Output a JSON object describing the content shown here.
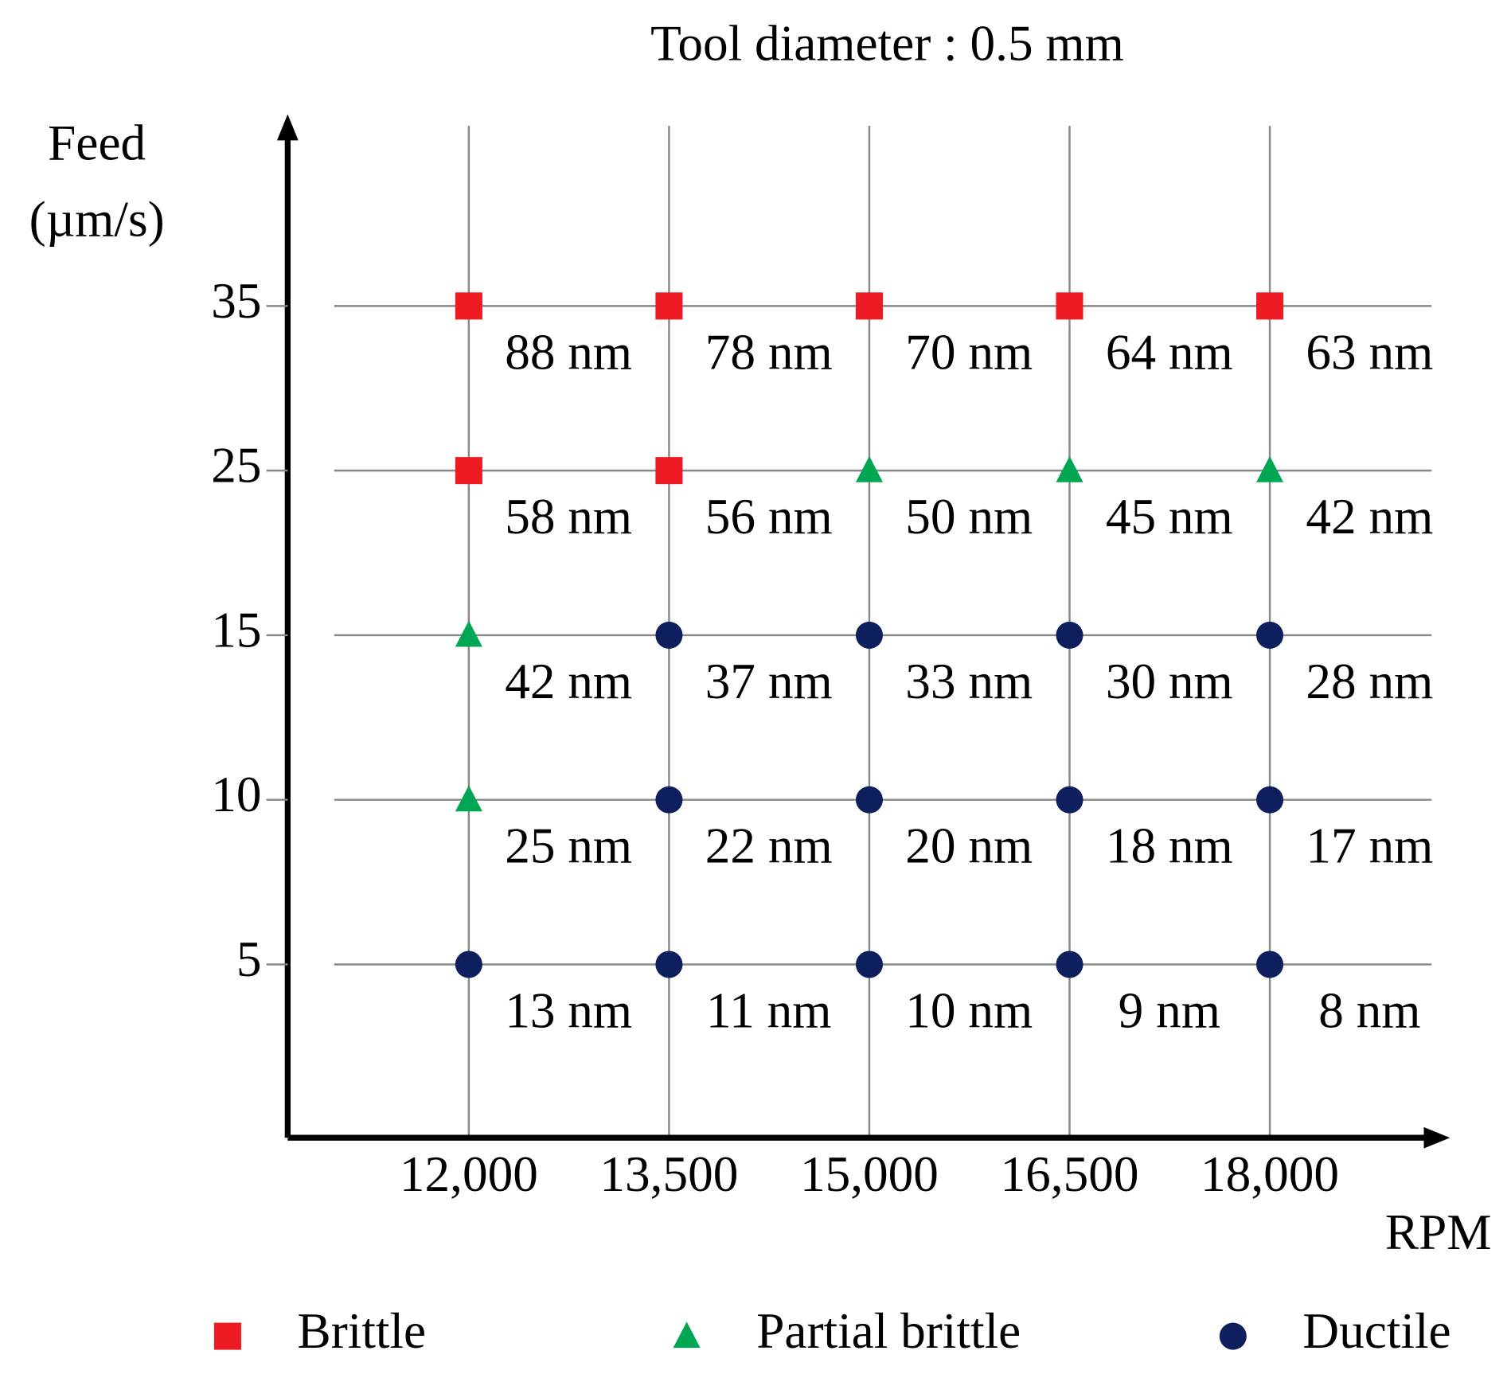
{
  "chart_data": {
    "type": "grid",
    "title": "Tool diameter : 0.5 mm",
    "x_label": "RPM",
    "y_label": [
      "Feed",
      "(µm/s)"
    ],
    "x_categories": [
      {
        "value": 12000,
        "label": "12,000"
      },
      {
        "value": 13500,
        "label": "13,500"
      },
      {
        "value": 15000,
        "label": "15,000"
      },
      {
        "value": 16500,
        "label": "16,500"
      },
      {
        "value": 18000,
        "label": "18,000"
      }
    ],
    "y_categories": [
      5,
      10,
      15,
      25,
      35
    ],
    "series": [
      {
        "name": "Brittle",
        "color": "#ed1c24",
        "marker": "square"
      },
      {
        "name": "Partial brittle",
        "color": "#00a651",
        "marker": "triangle"
      },
      {
        "name": "Ductile",
        "color": "#0d1f5c",
        "marker": "circle"
      }
    ],
    "states": [
      [
        "Ductile",
        "Ductile",
        "Ductile",
        "Ductile",
        "Ductile"
      ],
      [
        "Partial brittle",
        "Ductile",
        "Ductile",
        "Ductile",
        "Ductile"
      ],
      [
        "Partial brittle",
        "Ductile",
        "Ductile",
        "Ductile",
        "Ductile"
      ],
      [
        "Brittle",
        "Brittle",
        "Partial brittle",
        "Partial brittle",
        "Partial brittle"
      ],
      [
        "Brittle",
        "Brittle",
        "Brittle",
        "Brittle",
        "Brittle"
      ]
    ],
    "values": [
      [
        13,
        11,
        10,
        9,
        8
      ],
      [
        25,
        22,
        20,
        18,
        17
      ],
      [
        42,
        37,
        33,
        30,
        28
      ],
      [
        58,
        56,
        50,
        45,
        42
      ],
      [
        88,
        78,
        70,
        64,
        63
      ]
    ],
    "value_labels": [
      [
        "13 nm",
        "11 nm",
        "10 nm",
        "9 nm",
        "8 nm"
      ],
      [
        "25 nm",
        "22 nm",
        "20 nm",
        "18 nm",
        "17 nm"
      ],
      [
        "42 nm",
        "37 nm",
        "33 nm",
        "30 nm",
        "28 nm"
      ],
      [
        "58 nm",
        "56 nm",
        "50 nm",
        "45 nm",
        "42 nm"
      ],
      [
        "88 nm",
        "78 nm",
        "70 nm",
        "64 nm",
        "63 nm"
      ]
    ],
    "grid": true
  }
}
